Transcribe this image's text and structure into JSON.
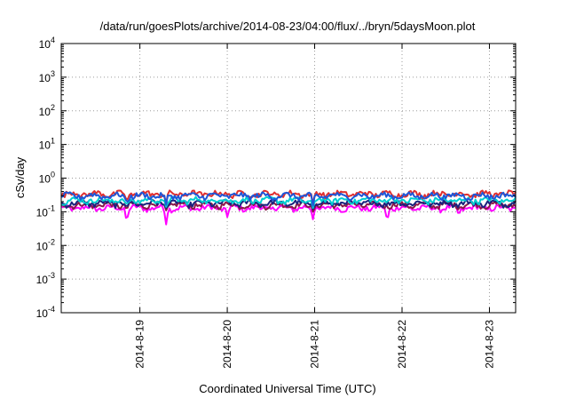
{
  "chart_data": {
    "type": "line",
    "title": "/data/run/goesPlots/archive/2014-08-23/04:00/flux/../bryn/5daysMoon.plot",
    "xlabel": "Coordinated Universal Time (UTC)",
    "ylabel": "cSv/day",
    "yscale": "log",
    "ylim": [
      0.0001,
      10000
    ],
    "y_ticks": [
      {
        "value": 0.0001,
        "base": "10",
        "exp": "-4"
      },
      {
        "value": 0.001,
        "base": "10",
        "exp": "-3"
      },
      {
        "value": 0.01,
        "base": "10",
        "exp": "-2"
      },
      {
        "value": 0.1,
        "base": "10",
        "exp": "-1"
      },
      {
        "value": 1,
        "base": "10",
        "exp": "0"
      },
      {
        "value": 10,
        "base": "10",
        "exp": "1"
      },
      {
        "value": 100,
        "base": "10",
        "exp": "2"
      },
      {
        "value": 1000,
        "base": "10",
        "exp": "3"
      },
      {
        "value": 10000,
        "base": "10",
        "exp": "4"
      }
    ],
    "xlim_days": [
      18.1,
      23.3
    ],
    "x_ticks": [
      {
        "day": 19,
        "label": "2014-8-19"
      },
      {
        "day": 20,
        "label": "2014-8-20"
      },
      {
        "day": 21,
        "label": "2014-8-21"
      },
      {
        "day": 22,
        "label": "2014-8-22"
      },
      {
        "day": 23,
        "label": "2014-8-23"
      }
    ],
    "grid": true,
    "series": [
      {
        "color": "#ff00ff",
        "base": 0.13,
        "dips": [
          {
            "day": 18.85,
            "value": 0.048
          },
          {
            "day": 19.3,
            "value": 0.042
          },
          {
            "day": 20.0,
            "value": 0.07
          },
          {
            "day": 20.98,
            "value": 0.06
          },
          {
            "day": 21.83,
            "value": 0.05
          },
          {
            "day": 22.65,
            "value": 0.08
          }
        ]
      },
      {
        "color": "#8b1a4a",
        "base": 0.16,
        "dips": [
          {
            "day": 18.85,
            "value": 0.12
          },
          {
            "day": 19.3,
            "value": 0.11
          },
          {
            "day": 20.98,
            "value": 0.1
          }
        ]
      },
      {
        "color": "#1a237e",
        "base": 0.18,
        "dips": [
          {
            "day": 18.85,
            "value": 0.14
          },
          {
            "day": 19.3,
            "value": 0.13
          },
          {
            "day": 20.98,
            "value": 0.12
          }
        ]
      },
      {
        "color": "#00ced1",
        "base": 0.22,
        "dips": [
          {
            "day": 18.85,
            "value": 0.15
          },
          {
            "day": 19.3,
            "value": 0.14
          },
          {
            "day": 20.98,
            "value": 0.13
          }
        ]
      },
      {
        "color": "#e03030",
        "base": 0.34,
        "dips": [
          {
            "day": 18.85,
            "value": 0.2
          },
          {
            "day": 19.3,
            "value": 0.18
          },
          {
            "day": 20.98,
            "value": 0.17
          }
        ]
      },
      {
        "color": "#1e56d8",
        "base": 0.3,
        "dips": [
          {
            "day": 18.85,
            "value": 0.18
          },
          {
            "day": 19.3,
            "value": 0.16
          },
          {
            "day": 20.98,
            "value": 0.15
          }
        ]
      }
    ]
  }
}
